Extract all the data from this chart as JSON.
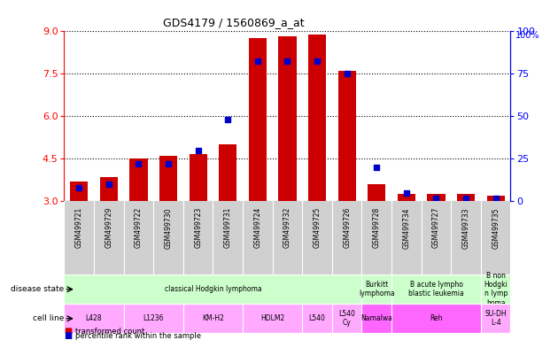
{
  "title": "GDS4179 / 1560869_a_at",
  "samples": [
    "GSM499721",
    "GSM499729",
    "GSM499722",
    "GSM499730",
    "GSM499723",
    "GSM499731",
    "GSM499724",
    "GSM499732",
    "GSM499725",
    "GSM499726",
    "GSM499728",
    "GSM499734",
    "GSM499727",
    "GSM499733",
    "GSM499735"
  ],
  "transformed_count": [
    3.7,
    3.85,
    4.5,
    4.6,
    4.65,
    5.0,
    8.75,
    8.8,
    8.85,
    7.6,
    3.6,
    3.25,
    3.25,
    3.25,
    3.2
  ],
  "percentile_rank": [
    8,
    10,
    22,
    22,
    30,
    48,
    82,
    82,
    82,
    75,
    20,
    5,
    2,
    2,
    2
  ],
  "ylim": [
    3,
    9
  ],
  "yticks_left": [
    3,
    4.5,
    6,
    7.5,
    9
  ],
  "yticks_right": [
    0,
    25,
    50,
    75,
    100
  ],
  "bar_color": "#cc0000",
  "dot_color": "#0000cc",
  "disease_state_groups": [
    {
      "label": "classical Hodgkin lymphoma",
      "start": 0,
      "end": 9,
      "color": "#ccffcc"
    },
    {
      "label": "Burkitt\nlymphoma",
      "start": 10,
      "end": 10,
      "color": "#ccffcc"
    },
    {
      "label": "B acute lympho\nblastic leukemia",
      "start": 11,
      "end": 13,
      "color": "#ccffcc"
    },
    {
      "label": "B non\nHodgki\nn lymp\nhoma",
      "start": 14,
      "end": 14,
      "color": "#ccffcc"
    }
  ],
  "cell_line_groups": [
    {
      "label": "L428",
      "start": 0,
      "end": 1,
      "color": "#ffaaff"
    },
    {
      "label": "L1236",
      "start": 2,
      "end": 3,
      "color": "#ffaaff"
    },
    {
      "label": "KM-H2",
      "start": 4,
      "end": 5,
      "color": "#ffaaff"
    },
    {
      "label": "HDLM2",
      "start": 6,
      "end": 7,
      "color": "#ffaaff"
    },
    {
      "label": "L540",
      "start": 8,
      "end": 8,
      "color": "#ffaaff"
    },
    {
      "label": "L540\nCy",
      "start": 9,
      "end": 9,
      "color": "#ffaaff"
    },
    {
      "label": "Namalwa",
      "start": 10,
      "end": 10,
      "color": "#ff66ff"
    },
    {
      "label": "Reh",
      "start": 11,
      "end": 13,
      "color": "#ff66ff"
    },
    {
      "label": "SU-DH\nL-4",
      "start": 14,
      "end": 14,
      "color": "#ffaaff"
    }
  ],
  "background_color": "#ffffff",
  "label_disease_state": "disease state",
  "label_cell_line": "cell line",
  "legend_bar": "transformed count",
  "legend_dot": "percentile rank within the sample"
}
